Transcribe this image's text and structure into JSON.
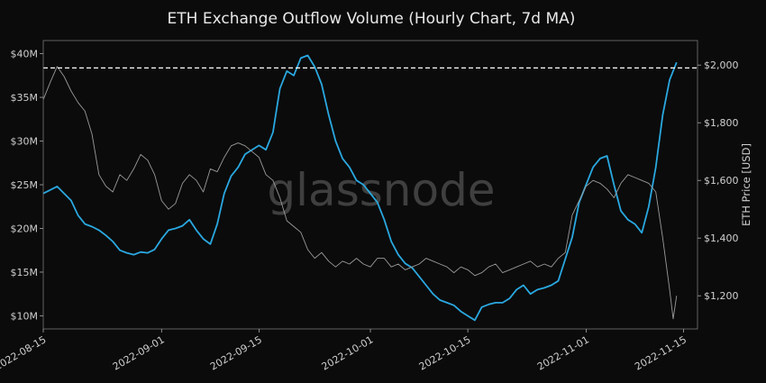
{
  "chart_data": {
    "type": "line",
    "title": "ETH Exchange Outflow Volume (Hourly Chart, 7d MA)",
    "watermark": "glassnode",
    "xlabel": "",
    "ylabel_left": "",
    "ylabel_right": "ETH Price [USD]",
    "x_ticks": [
      "2022-08-15",
      "2022-09-01",
      "2022-09-15",
      "2022-10-01",
      "2022-10-15",
      "2022-11-01",
      "2022-11-15"
    ],
    "x_tick_days": [
      0,
      17,
      31,
      47,
      61,
      78,
      92
    ],
    "y_left_ticks": [
      "$10M",
      "$15M",
      "$20M",
      "$25M",
      "$30M",
      "$35M",
      "$40M"
    ],
    "y_left_tick_values": [
      10,
      15,
      20,
      25,
      30,
      35,
      40
    ],
    "y_right_ticks": [
      "$1,200",
      "$1,400",
      "$1,600",
      "$1,800",
      "$2,000"
    ],
    "y_right_tick_values": [
      1200,
      1400,
      1600,
      1800,
      2000
    ],
    "ylim_left": [
      8.5,
      41.5
    ],
    "ylim_right": [
      1085,
      2085
    ],
    "xlim_days": [
      0,
      94
    ],
    "reference_line": {
      "axis": "right",
      "value": 1990,
      "style": "dashed",
      "color": "#ffffff"
    },
    "grid": false,
    "series": [
      {
        "name": "",
        "axis": "left",
        "color": "#2aa8e0",
        "points": [
          [
            0,
            24.0
          ],
          [
            2,
            24.8
          ],
          [
            3,
            24.0
          ],
          [
            4,
            23.2
          ],
          [
            5,
            21.5
          ],
          [
            6,
            20.5
          ],
          [
            7,
            20.2
          ],
          [
            8,
            19.8
          ],
          [
            9,
            19.2
          ],
          [
            10,
            18.5
          ],
          [
            11,
            17.5
          ],
          [
            12,
            17.2
          ],
          [
            13,
            17.0
          ],
          [
            14,
            17.3
          ],
          [
            15,
            17.2
          ],
          [
            16,
            17.6
          ],
          [
            17,
            18.8
          ],
          [
            18,
            19.8
          ],
          [
            19,
            20.0
          ],
          [
            20,
            20.3
          ],
          [
            21,
            21.0
          ],
          [
            22,
            19.8
          ],
          [
            23,
            18.8
          ],
          [
            24,
            18.2
          ],
          [
            25,
            20.5
          ],
          [
            26,
            24.0
          ],
          [
            27,
            26.0
          ],
          [
            28,
            27.0
          ],
          [
            29,
            28.5
          ],
          [
            30,
            29.0
          ],
          [
            31,
            29.5
          ],
          [
            32,
            29.0
          ],
          [
            33,
            31.0
          ],
          [
            34,
            36.0
          ],
          [
            35,
            38.0
          ],
          [
            36,
            37.5
          ],
          [
            37,
            39.5
          ],
          [
            38,
            39.8
          ],
          [
            39,
            38.5
          ],
          [
            40,
            36.5
          ],
          [
            41,
            33.0
          ],
          [
            42,
            30.0
          ],
          [
            43,
            28.0
          ],
          [
            44,
            27.0
          ],
          [
            45,
            25.5
          ],
          [
            46,
            25.0
          ],
          [
            47,
            24.0
          ],
          [
            48,
            23.0
          ],
          [
            49,
            21.0
          ],
          [
            50,
            18.5
          ],
          [
            51,
            17.0
          ],
          [
            52,
            16.0
          ],
          [
            53,
            15.5
          ],
          [
            54,
            14.5
          ],
          [
            55,
            13.5
          ],
          [
            56,
            12.5
          ],
          [
            57,
            11.8
          ],
          [
            58,
            11.5
          ],
          [
            59,
            11.2
          ],
          [
            60,
            10.5
          ],
          [
            61,
            10.0
          ],
          [
            62,
            9.5
          ],
          [
            63,
            11.0
          ],
          [
            64,
            11.3
          ],
          [
            65,
            11.5
          ],
          [
            66,
            11.5
          ],
          [
            67,
            12.0
          ],
          [
            68,
            13.0
          ],
          [
            69,
            13.5
          ],
          [
            70,
            12.5
          ],
          [
            71,
            13.0
          ],
          [
            72,
            13.2
          ],
          [
            73,
            13.5
          ],
          [
            74,
            14.0
          ],
          [
            75,
            16.5
          ],
          [
            76,
            19.0
          ],
          [
            77,
            23.0
          ],
          [
            78,
            25.0
          ],
          [
            79,
            27.0
          ],
          [
            80,
            28.0
          ],
          [
            81,
            28.3
          ],
          [
            82,
            25.0
          ],
          [
            83,
            22.0
          ],
          [
            84,
            21.0
          ],
          [
            85,
            20.5
          ],
          [
            86,
            19.5
          ],
          [
            87,
            22.5
          ],
          [
            88,
            27.0
          ],
          [
            89,
            33.0
          ],
          [
            90,
            37.0
          ],
          [
            91,
            39.0
          ]
        ]
      },
      {
        "name": "",
        "axis": "right",
        "color": "#9a9a9a",
        "points": [
          [
            0,
            1880
          ],
          [
            1,
            1940
          ],
          [
            2,
            1995
          ],
          [
            3,
            1960
          ],
          [
            4,
            1910
          ],
          [
            5,
            1870
          ],
          [
            6,
            1840
          ],
          [
            7,
            1760
          ],
          [
            8,
            1620
          ],
          [
            9,
            1580
          ],
          [
            10,
            1560
          ],
          [
            11,
            1620
          ],
          [
            12,
            1600
          ],
          [
            13,
            1640
          ],
          [
            14,
            1690
          ],
          [
            15,
            1670
          ],
          [
            16,
            1620
          ],
          [
            17,
            1530
          ],
          [
            18,
            1500
          ],
          [
            19,
            1520
          ],
          [
            20,
            1590
          ],
          [
            21,
            1620
          ],
          [
            22,
            1600
          ],
          [
            23,
            1560
          ],
          [
            24,
            1640
          ],
          [
            25,
            1630
          ],
          [
            26,
            1680
          ],
          [
            27,
            1720
          ],
          [
            28,
            1730
          ],
          [
            29,
            1720
          ],
          [
            30,
            1700
          ],
          [
            31,
            1680
          ],
          [
            32,
            1620
          ],
          [
            33,
            1600
          ],
          [
            34,
            1540
          ],
          [
            35,
            1460
          ],
          [
            36,
            1440
          ],
          [
            37,
            1420
          ],
          [
            38,
            1360
          ],
          [
            39,
            1330
          ],
          [
            40,
            1350
          ],
          [
            41,
            1320
          ],
          [
            42,
            1300
          ],
          [
            43,
            1320
          ],
          [
            44,
            1310
          ],
          [
            45,
            1330
          ],
          [
            46,
            1310
          ],
          [
            47,
            1300
          ],
          [
            48,
            1330
          ],
          [
            49,
            1330
          ],
          [
            50,
            1300
          ],
          [
            51,
            1310
          ],
          [
            52,
            1290
          ],
          [
            53,
            1300
          ],
          [
            54,
            1310
          ],
          [
            55,
            1330
          ],
          [
            56,
            1320
          ],
          [
            57,
            1310
          ],
          [
            58,
            1300
          ],
          [
            59,
            1280
          ],
          [
            60,
            1300
          ],
          [
            61,
            1290
          ],
          [
            62,
            1270
          ],
          [
            63,
            1280
          ],
          [
            64,
            1300
          ],
          [
            65,
            1310
          ],
          [
            66,
            1280
          ],
          [
            67,
            1290
          ],
          [
            68,
            1300
          ],
          [
            69,
            1310
          ],
          [
            70,
            1320
          ],
          [
            71,
            1300
          ],
          [
            72,
            1310
          ],
          [
            73,
            1300
          ],
          [
            74,
            1330
          ],
          [
            75,
            1350
          ],
          [
            76,
            1480
          ],
          [
            77,
            1530
          ],
          [
            78,
            1580
          ],
          [
            79,
            1600
          ],
          [
            80,
            1590
          ],
          [
            81,
            1570
          ],
          [
            82,
            1540
          ],
          [
            83,
            1590
          ],
          [
            84,
            1620
          ],
          [
            85,
            1610
          ],
          [
            86,
            1600
          ],
          [
            87,
            1590
          ],
          [
            88,
            1560
          ],
          [
            89,
            1400
          ],
          [
            90,
            1220
          ],
          [
            90.5,
            1120
          ],
          [
            91,
            1200
          ]
        ]
      }
    ]
  }
}
